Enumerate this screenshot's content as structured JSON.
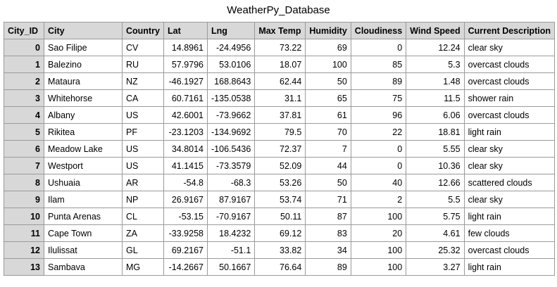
{
  "title": "WeatherPy_Database",
  "columns": [
    "City_ID",
    "City",
    "Country",
    "Lat",
    "Lng",
    "Max Temp",
    "Humidity",
    "Cloudiness",
    "Wind Speed",
    "Current Description"
  ],
  "rows": [
    [
      "0",
      "Sao Filipe",
      "CV",
      "14.8961",
      "-24.4956",
      "73.22",
      "69",
      "0",
      "12.24",
      "clear sky"
    ],
    [
      "1",
      "Balezino",
      "RU",
      "57.9796",
      "53.0106",
      "18.07",
      "100",
      "85",
      "5.3",
      "overcast clouds"
    ],
    [
      "2",
      "Mataura",
      "NZ",
      "-46.1927",
      "168.8643",
      "62.44",
      "50",
      "89",
      "1.48",
      "overcast clouds"
    ],
    [
      "3",
      "Whitehorse",
      "CA",
      "60.7161",
      "-135.0538",
      "31.1",
      "65",
      "75",
      "11.5",
      "shower rain"
    ],
    [
      "4",
      "Albany",
      "US",
      "42.6001",
      "-73.9662",
      "37.81",
      "61",
      "96",
      "6.06",
      "overcast clouds"
    ],
    [
      "5",
      "Rikitea",
      "PF",
      "-23.1203",
      "-134.9692",
      "79.5",
      "70",
      "22",
      "18.81",
      "light rain"
    ],
    [
      "6",
      "Meadow Lake",
      "US",
      "34.8014",
      "-106.5436",
      "72.37",
      "7",
      "0",
      "5.55",
      "clear sky"
    ],
    [
      "7",
      "Westport",
      "US",
      "41.1415",
      "-73.3579",
      "52.09",
      "44",
      "0",
      "10.36",
      "clear sky"
    ],
    [
      "8",
      "Ushuaia",
      "AR",
      "-54.8",
      "-68.3",
      "53.26",
      "50",
      "40",
      "12.66",
      "scattered clouds"
    ],
    [
      "9",
      "Ilam",
      "NP",
      "26.9167",
      "87.9167",
      "53.74",
      "71",
      "2",
      "5.5",
      "clear sky"
    ],
    [
      "10",
      "Punta Arenas",
      "CL",
      "-53.15",
      "-70.9167",
      "50.11",
      "87",
      "100",
      "5.75",
      "light rain"
    ],
    [
      "11",
      "Cape Town",
      "ZA",
      "-33.9258",
      "18.4232",
      "69.12",
      "83",
      "20",
      "4.61",
      "few clouds"
    ],
    [
      "12",
      "Ilulissat",
      "GL",
      "69.2167",
      "-51.1",
      "33.82",
      "34",
      "100",
      "25.32",
      "overcast clouds"
    ],
    [
      "13",
      "Sambava",
      "MG",
      "-14.2667",
      "50.1667",
      "76.64",
      "89",
      "100",
      "3.27",
      "light rain"
    ]
  ]
}
